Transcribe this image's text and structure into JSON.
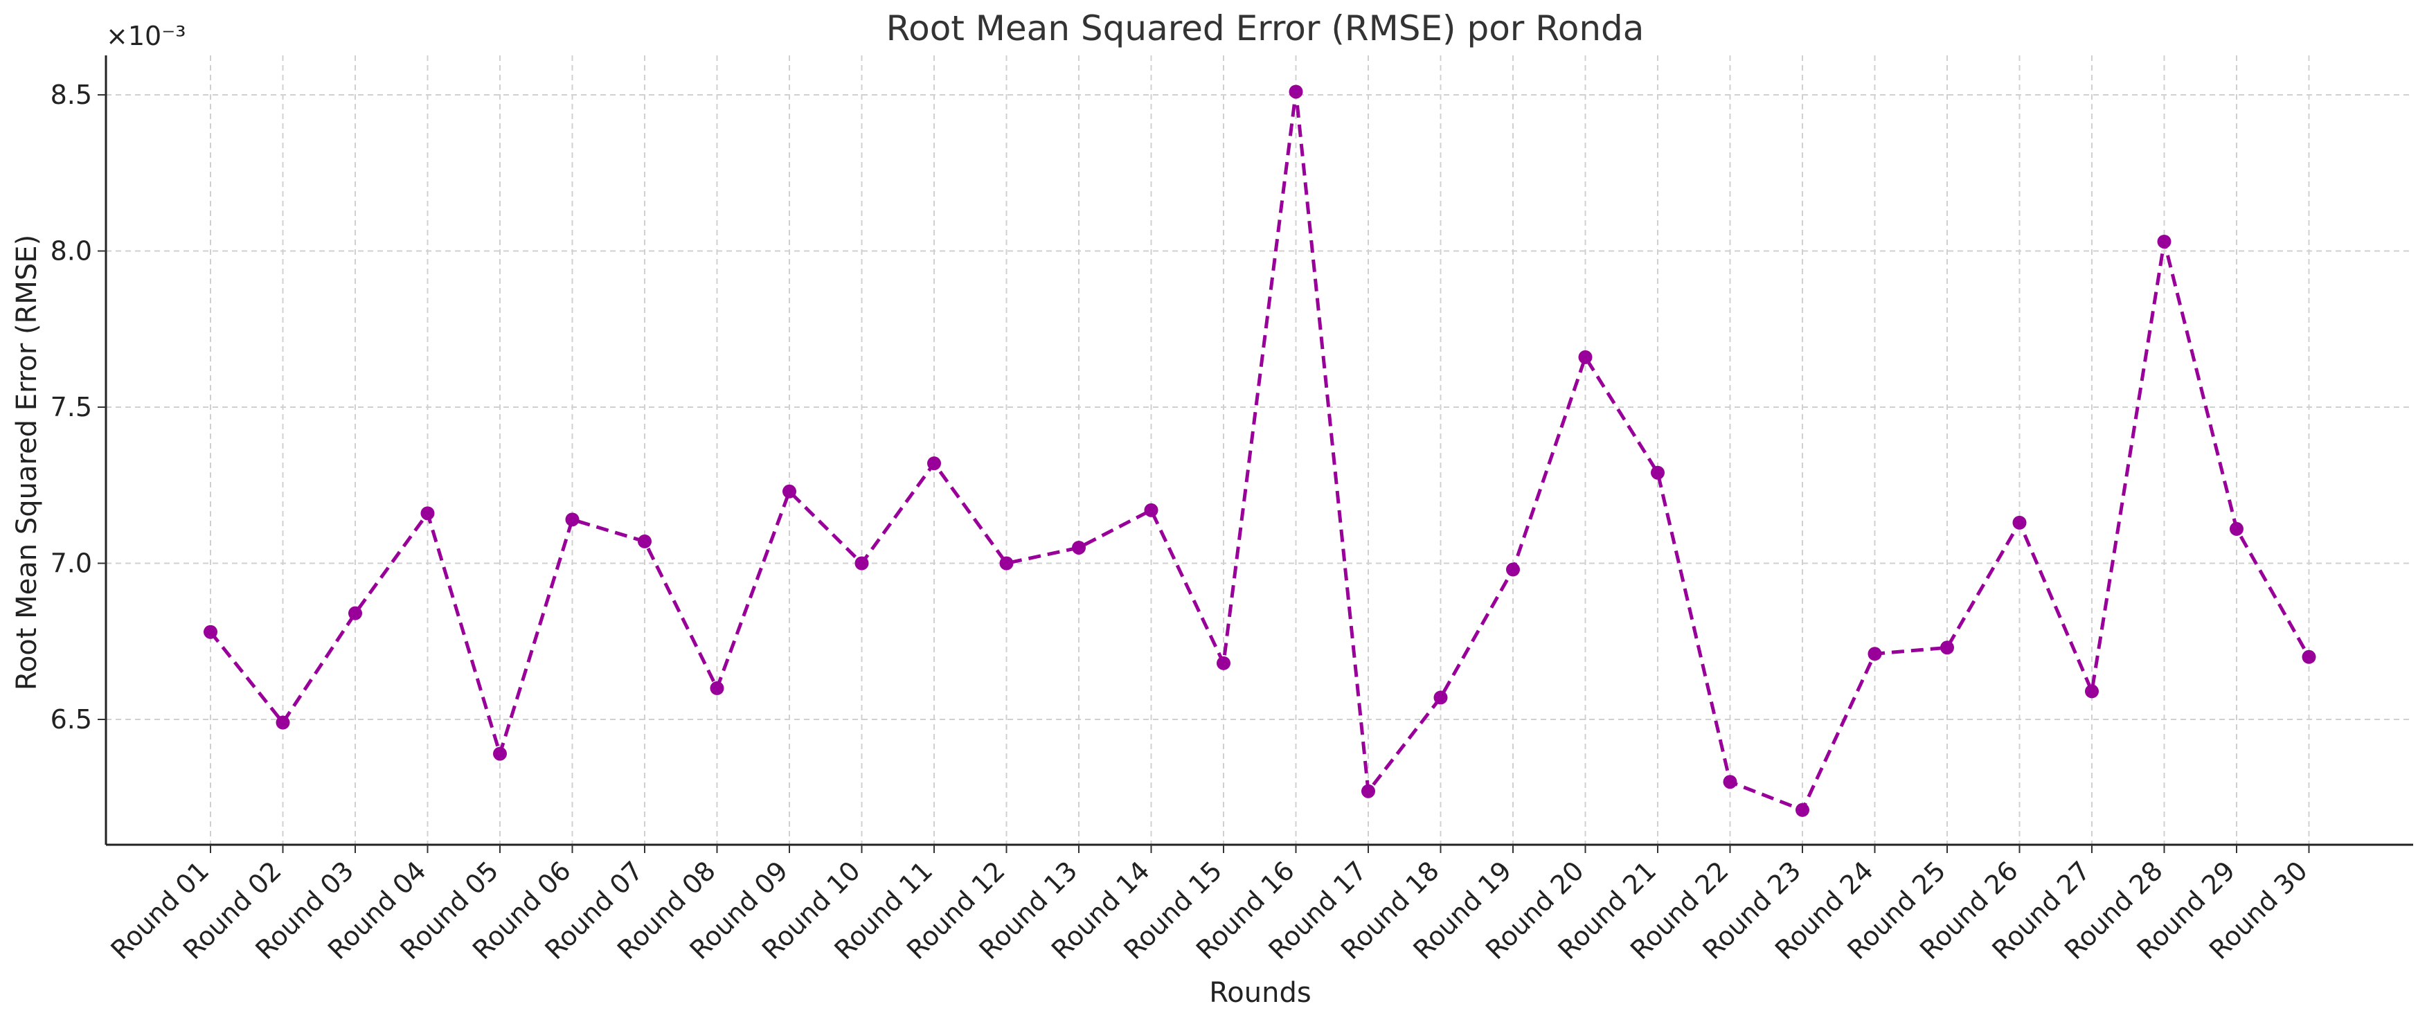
{
  "chart_data": {
    "type": "line",
    "title": "Root Mean Squared Error (RMSE) por Ronda",
    "xlabel": "Rounds",
    "ylabel": "Root Mean Squared Error (RMSE)",
    "y_offset_label": "×10⁻³",
    "y_scale_factor": 0.001,
    "ylim": [
      6.1,
      8.62
    ],
    "yticks": [
      6.5,
      7.0,
      7.5,
      8.0,
      8.5
    ],
    "ytick_labels": [
      "6.5",
      "7.0",
      "7.5",
      "8.0",
      "8.5"
    ],
    "grid": true,
    "categories": [
      "Round 01",
      "Round 02",
      "Round 03",
      "Round 04",
      "Round 05",
      "Round 06",
      "Round 07",
      "Round 08",
      "Round 09",
      "Round 10",
      "Round 11",
      "Round 12",
      "Round 13",
      "Round 14",
      "Round 15",
      "Round 16",
      "Round 17",
      "Round 18",
      "Round 19",
      "Round 20",
      "Round 21",
      "Round 22",
      "Round 23",
      "Round 24",
      "Round 25",
      "Round 26",
      "Round 27",
      "Round 28",
      "Round 29",
      "Round 30"
    ],
    "series": [
      {
        "color": "#990099",
        "line_style": "dashed",
        "marker": "circle",
        "values": [
          6.78,
          6.49,
          6.84,
          7.16,
          6.39,
          7.14,
          7.07,
          6.6,
          7.23,
          7.0,
          7.32,
          7.0,
          7.05,
          7.17,
          6.68,
          8.51,
          6.27,
          6.57,
          6.98,
          7.66,
          7.29,
          6.3,
          6.21,
          6.71,
          6.73,
          7.13,
          6.59,
          8.03,
          7.11,
          6.7
        ]
      }
    ]
  }
}
